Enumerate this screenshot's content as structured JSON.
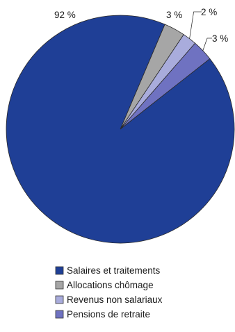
{
  "chart_data": {
    "type": "pie",
    "title": "",
    "slices": [
      {
        "label": "Salaires et traitements",
        "value": 92,
        "value_label": "92 %",
        "color": "#1f3f96"
      },
      {
        "label": "Allocations chômage",
        "value": 3,
        "value_label": "3 %",
        "color": "#a6a6a6"
      },
      {
        "label": "Revenus non salariaux",
        "value": 2,
        "value_label": "2 %",
        "color": "#a9acdc"
      },
      {
        "label": "Pensions de retraite",
        "value": 3,
        "value_label": "3 %",
        "color": "#6f72c1"
      }
    ],
    "legend_position": "bottom"
  }
}
